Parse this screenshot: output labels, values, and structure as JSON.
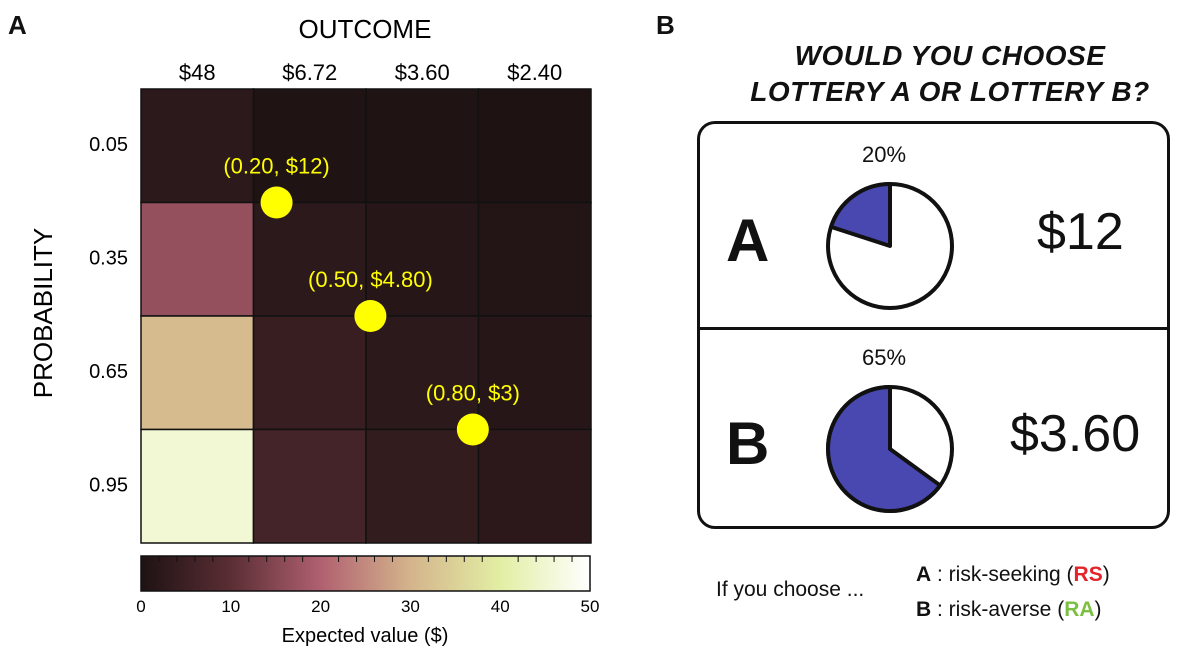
{
  "panels": {
    "left_letter": "A",
    "right_letter": "B"
  },
  "chart_data": {
    "type": "heatmap",
    "title": "",
    "xlabel": "OUTCOME",
    "ylabel": "PROBABILITY",
    "x_categories": [
      "$48",
      "$6.72",
      "$3.60",
      "$2.40"
    ],
    "y_categories": [
      "0.05",
      "0.35",
      "0.65",
      "0.95"
    ],
    "values": [
      [
        2.4,
        0.34,
        0.18,
        0.12
      ],
      [
        16.8,
        2.35,
        1.26,
        0.84
      ],
      [
        31.2,
        4.37,
        2.34,
        1.56
      ],
      [
        45.6,
        6.38,
        3.42,
        2.28
      ]
    ],
    "colorbar": {
      "label": "Expected value ($)",
      "range": [
        0,
        50
      ],
      "ticks": [
        "0",
        "10",
        "20",
        "30",
        "40",
        "50"
      ]
    },
    "points": [
      {
        "label": "(0.20, $12)",
        "probability": 0.2,
        "outcome": 12
      },
      {
        "label": "(0.50, $4.80)",
        "probability": 0.5,
        "outcome": 4.8
      },
      {
        "label": "(0.80, $3)",
        "probability": 0.8,
        "outcome": 3
      }
    ],
    "point_color": "#ffff00"
  },
  "question": {
    "line1": "WOULD YOU CHOOSE",
    "line2": "LOTTERY A OR LOTTERY B?"
  },
  "lotteries": [
    {
      "letter": "A",
      "probability_label": "20%",
      "probability": 0.2,
      "amount": "$12"
    },
    {
      "letter": "B",
      "probability_label": "65%",
      "probability": 0.65,
      "amount": "$3.60"
    }
  ],
  "pie_fill_color": "#4848b0",
  "choice_legend": {
    "prefix": "If you choose ...",
    "a_letter": "A",
    "a_text": " :  risk-seeking (",
    "a_code": "RS",
    "b_letter": "B",
    "b_text": " :  risk-averse (",
    "b_code": "RA",
    "close": ")"
  }
}
